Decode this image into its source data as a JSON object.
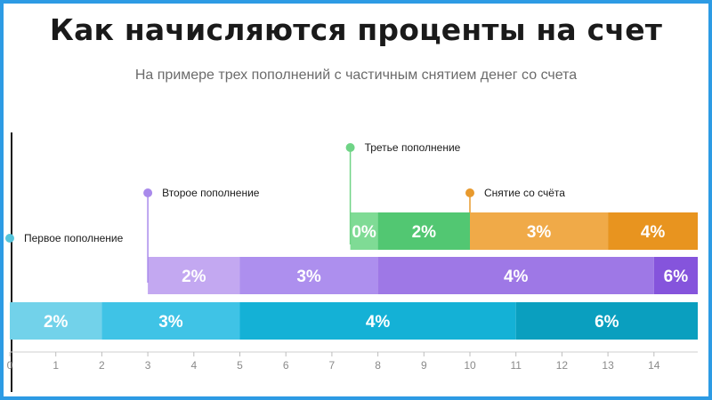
{
  "title": "Как начисляются проценты на счет",
  "subtitle": "На примере трех пополнений с частичным снятием денег со счета",
  "colors": {
    "cyan": [
      "#72d2ea",
      "#3fc3e6",
      "#14b1d6",
      "#0a9fbf"
    ],
    "purple": [
      "#c3a8f1",
      "#a98aeb",
      "#9e78e6",
      "#8554dc"
    ],
    "green": [
      "#7fdb95",
      "#52c772"
    ],
    "orange": [
      "#f0aa48",
      "#e8941f"
    ]
  },
  "axis": {
    "ticks": [
      "0",
      "1",
      "2",
      "3",
      "4",
      "5",
      "6",
      "7",
      "8",
      "9",
      "10",
      "11",
      "12",
      "13",
      "14"
    ]
  },
  "events": [
    {
      "label": "Первое пополнение",
      "x": 0,
      "color": "#55c4db"
    },
    {
      "label": "Второе пополнение",
      "x": 3,
      "color": "#a98aeb"
    },
    {
      "label": "Третье пополнение",
      "x": 7.4,
      "color": "#6fd486"
    },
    {
      "label": "Снятие со счёта",
      "x": 10,
      "color": "#e89a2e"
    }
  ],
  "rows": [
    {
      "name": "first-deposit",
      "segments": [
        {
          "from": 0,
          "to": 2,
          "label": "2%",
          "color": "#72d2ea"
        },
        {
          "from": 2,
          "to": 5,
          "label": "3%",
          "color": "#3fc3e6"
        },
        {
          "from": 5,
          "to": 11,
          "label": "4%",
          "color": "#14b1d6"
        },
        {
          "from": 11,
          "to": 15,
          "label": "6%",
          "color": "#0a9fbf"
        }
      ]
    },
    {
      "name": "second-deposit",
      "segments": [
        {
          "from": 3,
          "to": 5,
          "label": "2%",
          "color": "#c3a8f1"
        },
        {
          "from": 5,
          "to": 8,
          "label": "3%",
          "color": "#ad8fee"
        },
        {
          "from": 8,
          "to": 14,
          "label": "4%",
          "color": "#9e78e6"
        },
        {
          "from": 14,
          "to": 15,
          "label": "6%",
          "color": "#8554dc"
        }
      ]
    },
    {
      "name": "third-deposit",
      "segments": [
        {
          "from": 7.4,
          "to": 8,
          "label": "0%",
          "color": "#7fdb95"
        },
        {
          "from": 8,
          "to": 10,
          "label": "2%",
          "color": "#52c772"
        },
        {
          "from": 10,
          "to": 13,
          "label": "3%",
          "color": "#f0aa48"
        },
        {
          "from": 13,
          "to": 15,
          "label": "4%",
          "color": "#e8941f"
        }
      ]
    }
  ]
}
